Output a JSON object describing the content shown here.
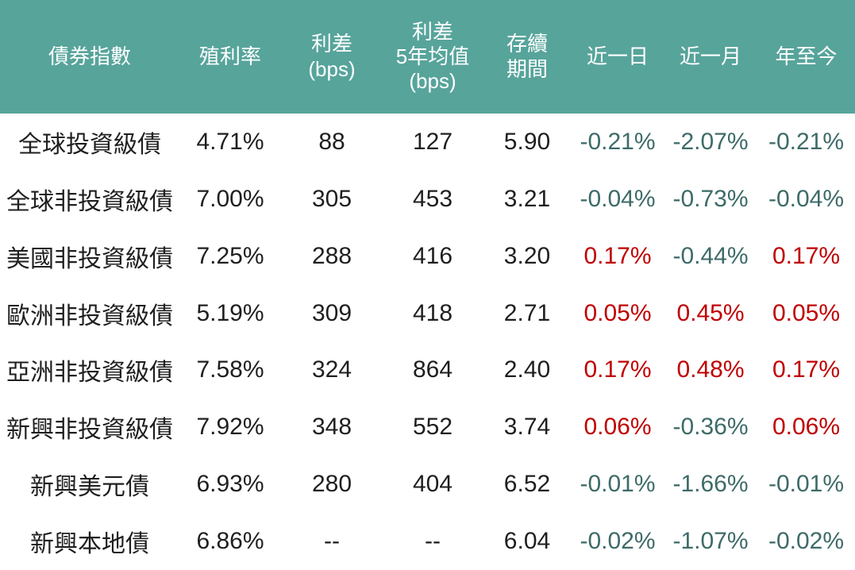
{
  "chart_data": {
    "type": "table",
    "columns": [
      "債券指數",
      "殖利率",
      "利差\n(bps)",
      "利差\n5年均值\n(bps)",
      "存續\n期間",
      "近一日",
      "近一月",
      "年至今"
    ],
    "rows": [
      {
        "name": "全球投資級債",
        "yield": "4.71%",
        "spread": "88",
        "spread_5y": "127",
        "duration": "5.90",
        "d1": {
          "text": "-0.21%",
          "tone": "down"
        },
        "m1": {
          "text": "-2.07%",
          "tone": "down"
        },
        "ytd": {
          "text": "-0.21%",
          "tone": "down"
        }
      },
      {
        "name": "全球非投資級債",
        "yield": "7.00%",
        "spread": "305",
        "spread_5y": "453",
        "duration": "3.21",
        "d1": {
          "text": "-0.04%",
          "tone": "down"
        },
        "m1": {
          "text": "-0.73%",
          "tone": "down"
        },
        "ytd": {
          "text": "-0.04%",
          "tone": "down"
        }
      },
      {
        "name": "美國非投資級債",
        "yield": "7.25%",
        "spread": "288",
        "spread_5y": "416",
        "duration": "3.20",
        "d1": {
          "text": "0.17%",
          "tone": "up"
        },
        "m1": {
          "text": "-0.44%",
          "tone": "down"
        },
        "ytd": {
          "text": "0.17%",
          "tone": "up"
        }
      },
      {
        "name": "歐洲非投資級債",
        "yield": "5.19%",
        "spread": "309",
        "spread_5y": "418",
        "duration": "2.71",
        "d1": {
          "text": "0.05%",
          "tone": "up"
        },
        "m1": {
          "text": "0.45%",
          "tone": "up"
        },
        "ytd": {
          "text": "0.05%",
          "tone": "up"
        }
      },
      {
        "name": "亞洲非投資級債",
        "yield": "7.58%",
        "spread": "324",
        "spread_5y": "864",
        "duration": "2.40",
        "d1": {
          "text": "0.17%",
          "tone": "up"
        },
        "m1": {
          "text": "0.48%",
          "tone": "up"
        },
        "ytd": {
          "text": "0.17%",
          "tone": "up"
        }
      },
      {
        "name": "新興非投資級債",
        "yield": "7.92%",
        "spread": "348",
        "spread_5y": "552",
        "duration": "3.74",
        "d1": {
          "text": "0.06%",
          "tone": "up"
        },
        "m1": {
          "text": "-0.36%",
          "tone": "down"
        },
        "ytd": {
          "text": "0.06%",
          "tone": "up"
        }
      },
      {
        "name": "新興美元債",
        "yield": "6.93%",
        "spread": "280",
        "spread_5y": "404",
        "duration": "6.52",
        "d1": {
          "text": "-0.01%",
          "tone": "down"
        },
        "m1": {
          "text": "-1.66%",
          "tone": "down"
        },
        "ytd": {
          "text": "-0.01%",
          "tone": "down"
        }
      },
      {
        "name": "新興本地債",
        "yield": "6.86%",
        "spread": "--",
        "spread_5y": "--",
        "duration": "6.04",
        "d1": {
          "text": "-0.02%",
          "tone": "down"
        },
        "m1": {
          "text": "-1.07%",
          "tone": "down"
        },
        "ytd": {
          "text": "-0.02%",
          "tone": "down"
        }
      }
    ]
  },
  "colors": {
    "header_bg": "#57A49B",
    "header_text": "#FFFFFF",
    "body_text": "#1F1F1F",
    "down_color": "#3D6B68",
    "up_color": "#C00000",
    "page_bg": "#FFFFFF"
  }
}
